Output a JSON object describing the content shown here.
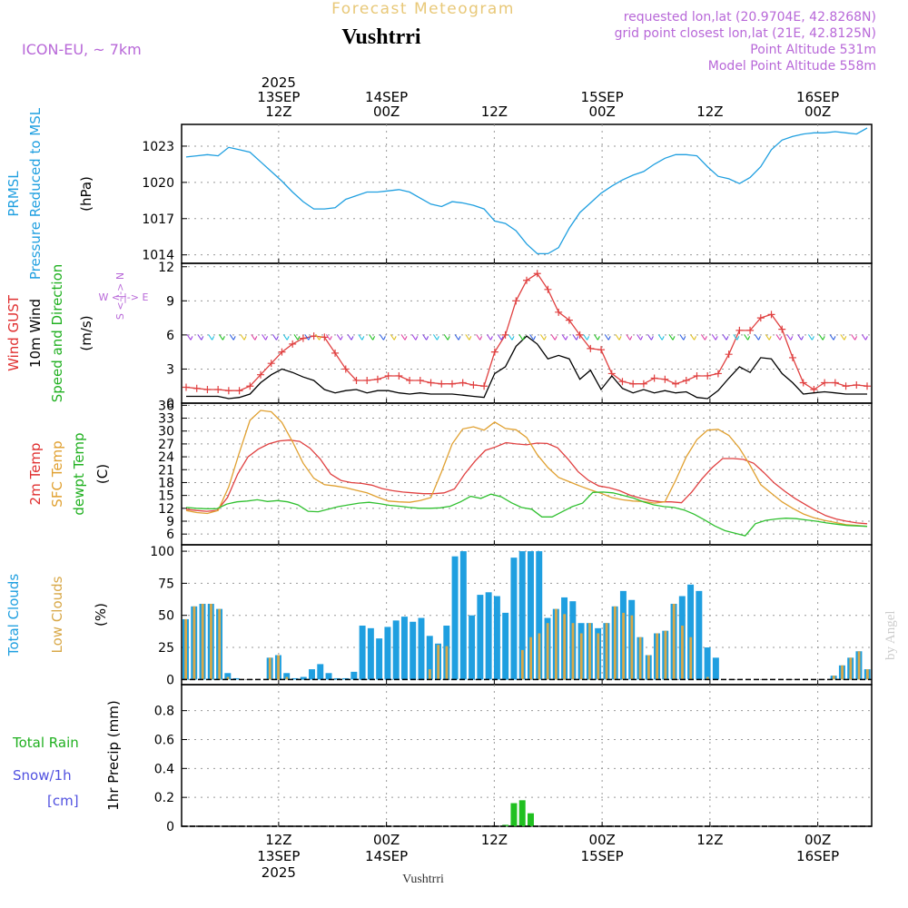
{
  "chart_data": {
    "type": "line",
    "title": "Forecast Meteogram",
    "location": "Vushtrri",
    "model": "ICON-EU, ~ 7km",
    "requested": "requested lon,lat (20.9704E, 42.8268N)",
    "gridpoint": "grid point closest lon,lat (21E, 42.8125N)",
    "point_altitude": "Point Altitude 531m",
    "model_altitude": "Model Point Altitude 558m",
    "watermark": "by Angel",
    "x_range_hours": [
      3,
      67
    ],
    "x_ticks": [
      {
        "hour": 12,
        "top": [
          "2025",
          "13SEP",
          "12Z"
        ],
        "bottom": [
          "12Z",
          "13SEP",
          "2025"
        ]
      },
      {
        "hour": 22,
        "top": [
          "14SEP",
          "00Z"
        ],
        "bottom": [
          "00Z",
          "14SEP"
        ]
      },
      {
        "hour": 32,
        "top": [
          "12Z"
        ],
        "bottom": [
          "12Z"
        ]
      },
      {
        "hour": 42,
        "top": [
          "15SEP",
          "00Z"
        ],
        "bottom": [
          "00Z",
          "15SEP"
        ]
      },
      {
        "hour": 52,
        "top": [
          "12Z"
        ],
        "bottom": [
          "12Z"
        ]
      },
      {
        "hour": 62,
        "top": [
          "16SEP",
          "00Z"
        ],
        "bottom": [
          "00Z",
          "16SEP"
        ]
      }
    ],
    "panels": [
      {
        "id": "pressure",
        "labels": [
          {
            "text": "PRMSL",
            "color": "#1f9fe0"
          },
          {
            "text": "Pressure Reduced to MSL",
            "color": "#1f9fe0"
          },
          {
            "text": "(hPa)",
            "color": "#000000"
          }
        ],
        "yticks": [
          1014,
          1017,
          1020,
          1023
        ],
        "ylim": [
          1013.3,
          1024.8
        ],
        "series": [
          {
            "name": "PRMSL",
            "color": "#1f9fe0",
            "values": [
              1022.1,
              1022.2,
              1022.3,
              1022.2,
              1022.9,
              1022.7,
              1022.5,
              1021.7,
              1020.9,
              1020.1,
              1019.2,
              1018.4,
              1017.8,
              1017.8,
              1017.9,
              1018.6,
              1018.9,
              1019.2,
              1019.2,
              1019.3,
              1019.4,
              1019.2,
              1018.7,
              1018.2,
              1018.0,
              1018.4,
              1018.3,
              1018.1,
              1017.8,
              1016.8,
              1016.6,
              1016.0,
              1014.9,
              1014.1,
              1014.1,
              1014.6,
              1016.2,
              1017.5,
              1018.3,
              1019.1,
              1019.7,
              1020.2,
              1020.6,
              1020.9,
              1021.5,
              1022.0,
              1022.3,
              1022.3,
              1022.2,
              1021.3,
              1020.5,
              1020.3,
              1019.9,
              1020.4,
              1021.3,
              1022.7,
              1023.5,
              1023.8,
              1024.0,
              1024.1,
              1024.1,
              1024.2,
              1024.1,
              1024.0,
              1024.5
            ]
          }
        ]
      },
      {
        "id": "wind",
        "labels": [
          {
            "text": "Wind GUST",
            "color": "#e03030"
          },
          {
            "text": "10m Wind",
            "color": "#000000"
          },
          {
            "text": "Speed and Direction",
            "color": "#20b020"
          },
          {
            "text": "(m/s)",
            "color": "#000000"
          }
        ],
        "compass": [
          "N",
          "W <-|-> E",
          "S"
        ],
        "yticks": [
          0,
          3,
          6,
          9,
          12
        ],
        "ylim": [
          0,
          12.3
        ],
        "series": [
          {
            "name": "Wind GUST",
            "color": "#e04040",
            "marker": "+",
            "values": [
              1.4,
              1.3,
              1.2,
              1.2,
              1.1,
              1.1,
              1.5,
              2.5,
              3.5,
              4.5,
              5.2,
              5.7,
              5.9,
              5.8,
              4.4,
              3.0,
              2.0,
              2.0,
              2.1,
              2.4,
              2.4,
              2.0,
              2.0,
              1.8,
              1.7,
              1.7,
              1.8,
              1.6,
              1.5,
              4.5,
              6.0,
              9.0,
              10.8,
              11.4,
              10.0,
              8.0,
              7.3,
              6.0,
              4.8,
              4.7,
              2.6,
              1.9,
              1.7,
              1.7,
              2.2,
              2.1,
              1.7,
              2.0,
              2.4,
              2.4,
              2.6,
              4.3,
              6.4,
              6.4,
              7.5,
              7.8,
              6.5,
              4.0,
              1.8,
              1.2,
              1.8,
              1.8,
              1.5,
              1.6,
              1.5
            ]
          },
          {
            "name": "10m Wind",
            "color": "#000000",
            "values": [
              0.6,
              0.6,
              0.6,
              0.6,
              0.4,
              0.5,
              0.8,
              1.8,
              2.5,
              3.0,
              2.7,
              2.3,
              2.0,
              1.2,
              0.9,
              1.1,
              1.2,
              0.9,
              1.1,
              1.1,
              0.9,
              0.8,
              0.9,
              0.8,
              0.8,
              0.8,
              0.7,
              0.6,
              0.5,
              2.6,
              3.2,
              5.0,
              5.9,
              5.2,
              3.9,
              4.2,
              3.9,
              2.1,
              2.9,
              1.2,
              2.4,
              1.3,
              0.9,
              1.2,
              0.9,
              1.1,
              0.9,
              1.0,
              0.5,
              0.4,
              1.1,
              2.2,
              3.2,
              2.7,
              4.0,
              3.9,
              2.6,
              1.8,
              0.8,
              0.9,
              1.0,
              0.9,
              0.8,
              0.8,
              0.8
            ]
          }
        ]
      },
      {
        "id": "temp",
        "labels": [
          {
            "text": "2m Temp",
            "color": "#e03030"
          },
          {
            "text": "SFC Temp",
            "color": "#e0a030"
          },
          {
            "text": "dewpt Temp",
            "color": "#20b020"
          },
          {
            "text": "(C)",
            "color": "#000000"
          }
        ],
        "yticks": [
          6,
          9,
          12,
          15,
          18,
          21,
          24,
          27,
          30,
          33,
          36
        ],
        "ylim": [
          3.5,
          36.5
        ],
        "series": [
          {
            "name": "2m Temp",
            "color": "#e04040",
            "values": [
              11.8,
              11.5,
              11.3,
              11.5,
              14.5,
              20,
              24,
              25.8,
              27,
              27.7,
              27.9,
              27.6,
              26,
              23.5,
              20,
              18.5,
              18,
              17.8,
              17.4,
              16.6,
              16.1,
              15.8,
              15.6,
              15.4,
              15.4,
              15.6,
              16.5,
              20,
              23,
              25.5,
              26.3,
              27.3,
              27,
              26.8,
              27.2,
              27.1,
              26.1,
              23.5,
              20.5,
              18.5,
              17.2,
              16.8,
              16.1,
              15.1,
              14.4,
              13.8,
              13.5,
              13.5,
              13.3,
              15.8,
              18.9,
              21.5,
              23.6,
              23.6,
              23.4,
              22.5,
              20.3,
              17.9,
              16.0,
              14.3,
              12.9,
              11.5,
              10.3,
              9.5,
              9.0,
              8.6,
              8.4
            ]
          },
          {
            "name": "SFC Temp",
            "color": "#e0a030",
            "values": [
              11.5,
              11,
              10.8,
              11.5,
              17,
              25,
              32.5,
              34.8,
              34.5,
              32,
              27.5,
              22.5,
              19,
              17.5,
              17.2,
              16.8,
              16.2,
              15.6,
              14.6,
              13.7,
              13.5,
              13.4,
              13.8,
              14.5,
              20.5,
              27,
              30.5,
              31,
              30.2,
              32.1,
              30.6,
              30.3,
              28.5,
              24.5,
              21.5,
              19.2,
              18.2,
              17.2,
              16.3,
              15.5,
              14.5,
              14,
              13.7,
              13.6,
              13.2,
              13.5,
              18.5,
              24,
              28,
              30.2,
              30.4,
              29,
              26,
              22,
              17.5,
              15.5,
              13.5,
              12,
              10.7,
              9.8,
              9.2,
              8.7,
              8.2,
              8.0,
              7.8
            ]
          },
          {
            "name": "dewpt Temp",
            "color": "#30c030",
            "values": [
              12.2,
              12,
              11.9,
              11.9,
              13,
              13.5,
              13.7,
              14.0,
              13.6,
              13.8,
              13.5,
              12.8,
              11.3,
              11.2,
              11.8,
              12.4,
              12.8,
              13.2,
              13.4,
              13.1,
              12.7,
              12.5,
              12.2,
              12.0,
              12.0,
              12.1,
              12.5,
              13.5,
              14.8,
              14.3,
              15.3,
              14.7,
              13.3,
              12.2,
              11.8,
              10.0,
              10.0,
              11.2,
              12.4,
              13.2,
              15.7,
              15.8,
              15.6,
              15.0,
              14.4,
              13.5,
              12.8,
              12.4,
              12.2,
              11.6,
              10.6,
              9.3,
              7.9,
              6.8,
              6.2,
              5.6,
              8.4,
              9.2,
              9.5,
              9.7,
              9.6,
              9.3,
              9.0,
              8.6,
              8.3,
              8.0,
              7.9,
              7.8
            ]
          }
        ]
      },
      {
        "id": "clouds",
        "type": "bar",
        "labels": [
          {
            "text": "Total Clouds",
            "color": "#1f9fe0"
          },
          {
            "text": "Low Clouds",
            "color": "#d8a848"
          },
          {
            "text": "(%)",
            "color": "#000000"
          }
        ],
        "yticks": [
          0,
          25,
          50,
          75,
          100
        ],
        "ylim": [
          -4,
          105
        ],
        "series": [
          {
            "name": "Total Clouds",
            "color": "#1f9fe0",
            "values": [
              47,
              57,
              59,
              59,
              55,
              5,
              1,
              0,
              0,
              0,
              17,
              19,
              5,
              1,
              2,
              8,
              12,
              5,
              1,
              1,
              6,
              42,
              40,
              32,
              41,
              46,
              49,
              45,
              48,
              34,
              28,
              42,
              96,
              100,
              50,
              66,
              68,
              65,
              52,
              95,
              100,
              100,
              100,
              48,
              55,
              64,
              61,
              44,
              44,
              40,
              44,
              57,
              69,
              62,
              33,
              19,
              36,
              38,
              59,
              65,
              74,
              69,
              25,
              17,
              0,
              0,
              0,
              0,
              0,
              0,
              0,
              0,
              0,
              0,
              0,
              0,
              0,
              3,
              11,
              17,
              22,
              8
            ]
          },
          {
            "name": "Low Clouds",
            "color": "#d8a848",
            "values": [
              47,
              57,
              59,
              59,
              55,
              2,
              0,
              0,
              0,
              0,
              17,
              19,
              2,
              0,
              0,
              0,
              0,
              0,
              0,
              0,
              0,
              0,
              0,
              0,
              0,
              0,
              0,
              0,
              0,
              8,
              27,
              26,
              0,
              0,
              0,
              0,
              0,
              0,
              0,
              0,
              23,
              33,
              36,
              44,
              55,
              51,
              44,
              36,
              44,
              36,
              44,
              57,
              52,
              50,
              33,
              19,
              36,
              38,
              59,
              42,
              33,
              0,
              2,
              0,
              0,
              0,
              0,
              0,
              0,
              0,
              0,
              0,
              0,
              0,
              0,
              0,
              0,
              3,
              11,
              17,
              22,
              8
            ]
          }
        ]
      },
      {
        "id": "precip",
        "type": "bar",
        "labels": [
          {
            "text": "Total  Rain",
            "color": "#20b020"
          },
          {
            "text": "Snow/1h",
            "color": "#5050e0"
          },
          {
            "text": "[cm]",
            "color": "#5050e0"
          },
          {
            "text": "1hr Precip (mm)",
            "color": "#000000"
          }
        ],
        "yticks": [
          0,
          0.2,
          0.4,
          0.6,
          0.8
        ],
        "ylim": [
          0,
          0.98
        ],
        "series": [
          {
            "name": "Rain",
            "color": "#20c020",
            "values": [
              0,
              0,
              0,
              0,
              0,
              0,
              0,
              0,
              0,
              0,
              0,
              0,
              0,
              0,
              0,
              0,
              0,
              0,
              0,
              0,
              0,
              0,
              0,
              0,
              0,
              0,
              0,
              0,
              0,
              0,
              0,
              0,
              0,
              0,
              0,
              0,
              0,
              0,
              0.01,
              0.16,
              0.18,
              0.09,
              0,
              0,
              0,
              0,
              0,
              0,
              0,
              0,
              0,
              0,
              0,
              0,
              0,
              0,
              0,
              0,
              0,
              0,
              0,
              0,
              0,
              0,
              0,
              0,
              0,
              0,
              0,
              0,
              0,
              0,
              0,
              0,
              0,
              0,
              0,
              0,
              0,
              0,
              0,
              0
            ]
          }
        ]
      }
    ]
  }
}
